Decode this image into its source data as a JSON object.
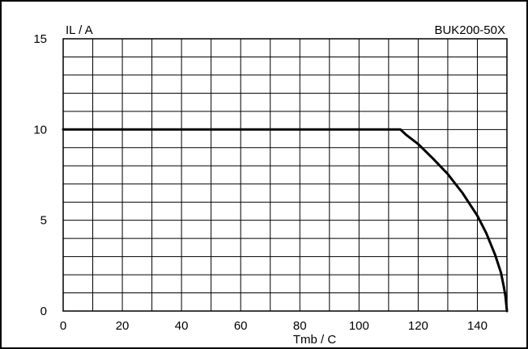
{
  "chart_data": {
    "type": "line",
    "title": "BUK200-50X",
    "xlabel": "Tmb / C",
    "ylabel": "IL / A",
    "xlim": [
      0,
      150
    ],
    "ylim": [
      0,
      15
    ],
    "x_ticks": [
      "0",
      "20",
      "40",
      "60",
      "80",
      "100",
      "120",
      "140"
    ],
    "y_ticks": [
      "0",
      "5",
      "10",
      "15"
    ],
    "grid": true,
    "series": [
      {
        "x": [
          0,
          20,
          40,
          60,
          80,
          100,
          114,
          116,
          120,
          125,
          130,
          135,
          140,
          143,
          146,
          148,
          149,
          149.5,
          150
        ],
        "y": [
          10,
          10,
          10,
          10,
          10,
          10,
          10,
          9.7,
          9.2,
          8.4,
          7.55,
          6.5,
          5.25,
          4.3,
          3.1,
          2.1,
          1.3,
          0.8,
          0
        ]
      }
    ]
  }
}
